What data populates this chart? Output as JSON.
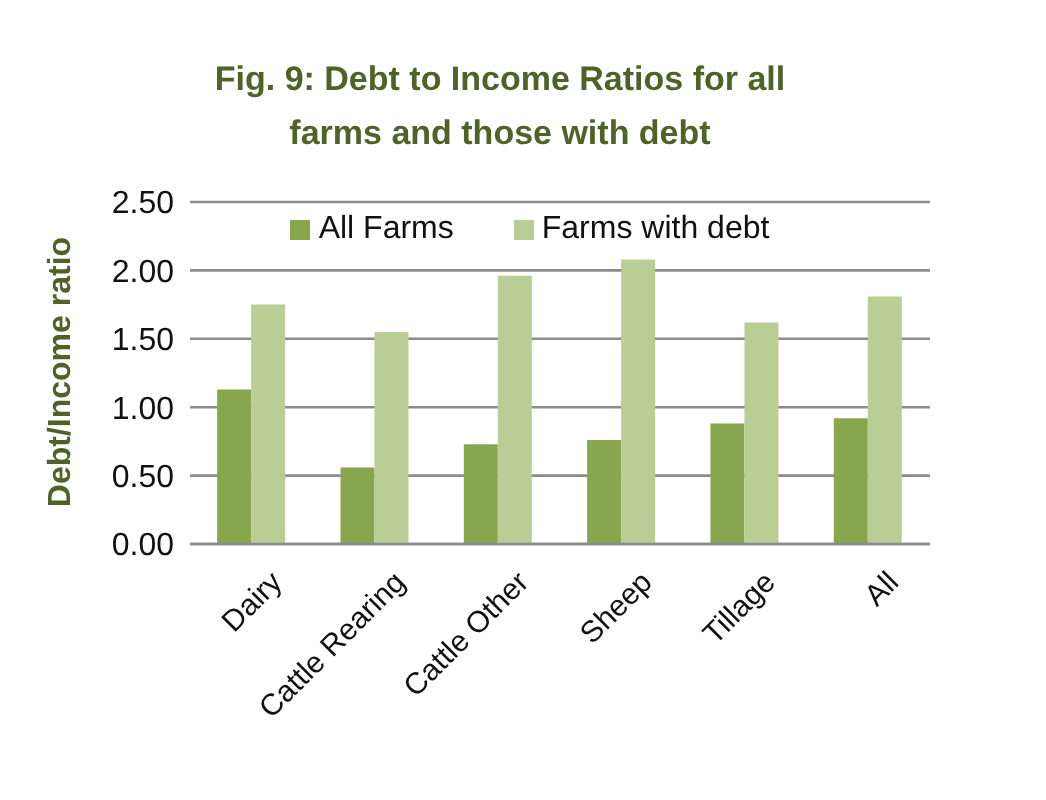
{
  "chart_data": {
    "type": "bar",
    "title": "Fig. 9: Debt to Income Ratios for all farms and those with debt",
    "ylabel": "Debt/Income ratio",
    "categories": [
      "Dairy",
      "Cattle Rearing",
      "Cattle Other",
      "Sheep",
      "Tillage",
      "All"
    ],
    "series": [
      {
        "name": "All Farms",
        "color": "#88a64e",
        "values": [
          1.13,
          0.56,
          0.73,
          0.76,
          0.88,
          0.92
        ]
      },
      {
        "name": "Farms with debt",
        "color": "#b8ce94",
        "values": [
          1.75,
          1.55,
          1.96,
          2.08,
          1.62,
          1.81
        ]
      }
    ],
    "ylim": [
      0,
      2.5
    ],
    "yticks": [
      {
        "value": 0,
        "label": "0.00"
      },
      {
        "value": 0.5,
        "label": "0.50"
      },
      {
        "value": 1,
        "label": "1.00"
      },
      {
        "value": 1.5,
        "label": "1.50"
      },
      {
        "value": 2,
        "label": "2.00"
      },
      {
        "value": 2.5,
        "label": "2.50"
      }
    ],
    "grid": "y",
    "legend": "top"
  }
}
